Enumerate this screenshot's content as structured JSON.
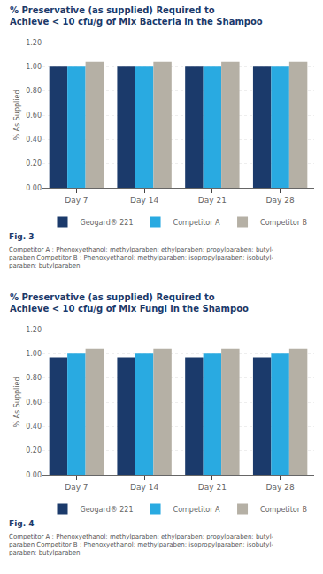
{
  "chart_data": [
    {
      "type": "bar",
      "title": "% Preservative (as supplied) Required to\nAchieve < 10 cfu/g of Mix Bacteria in the Shampoo",
      "ylabel": "% As Supplied",
      "categories": [
        "Day 7",
        "Day 14",
        "Day 21",
        "Day 28"
      ],
      "series": [
        {
          "name": "Geogard® 221",
          "color": "#1b3a6b",
          "values": [
            1.0,
            1.0,
            1.0,
            1.0
          ]
        },
        {
          "name": "Competitor A",
          "color": "#29aae1",
          "values": [
            1.0,
            1.0,
            1.0,
            1.0
          ]
        },
        {
          "name": "Competitor B",
          "color": "#b5b0a5",
          "values": [
            1.04,
            1.04,
            1.04,
            1.04
          ]
        }
      ],
      "ylim": [
        0,
        1.2
      ],
      "yticks": [
        {
          "value": 0,
          "label": "0.00"
        },
        {
          "value": 0.2,
          "label": "0.20"
        },
        {
          "value": 0.4,
          "label": "0.40"
        },
        {
          "value": 0.6,
          "label": "0.60"
        },
        {
          "value": 0.8,
          "label": "0.80"
        },
        {
          "value": 1.0,
          "label": "1.00"
        },
        {
          "value": 1.2,
          "label": "1.20"
        }
      ],
      "grid": true,
      "legend": "bottom",
      "annotations": [
        "Fig. 3",
        "Competitor A : Phenoxyethanol; methylparaben; ethylparaben; propylparaben; butyl-\nparaben Competitor B : Phenoxyethanol; methylparaben; isopropylparaben; isobutyl-\nparaben; butylparaben"
      ]
    },
    {
      "type": "bar",
      "title": "% Preservative (as supplied) Required to\nAchieve < 10 cfu/g of Mix Fungi in the Shampoo",
      "ylabel": "% As Supplied",
      "categories": [
        "Day 7",
        "Day 14",
        "Day 21",
        "Day 28"
      ],
      "series": [
        {
          "name": "Geogard® 221",
          "color": "#1b3a6b",
          "values": [
            0.97,
            0.97,
            0.97,
            0.97
          ]
        },
        {
          "name": "Competitor A",
          "color": "#29aae1",
          "values": [
            1.0,
            1.0,
            1.0,
            1.0
          ]
        },
        {
          "name": "Competitor B",
          "color": "#b5b0a5",
          "values": [
            1.04,
            1.04,
            1.04,
            1.04
          ]
        }
      ],
      "ylim": [
        0,
        1.2
      ],
      "yticks": [
        {
          "value": 0,
          "label": "0.00"
        },
        {
          "value": 0.2,
          "label": "0.20"
        },
        {
          "value": 0.4,
          "label": "0.40"
        },
        {
          "value": 0.6,
          "label": "0.60"
        },
        {
          "value": 0.8,
          "label": "0.80"
        },
        {
          "value": 1.0,
          "label": "1.00"
        },
        {
          "value": 1.2,
          "label": "1.20"
        }
      ],
      "grid": true,
      "legend": "bottom",
      "annotations": [
        "Fig. 4",
        "Competitor A : Phenoxyethanol; methylparaben; ethylparaben; propylparaben; butyl-\nparaben Competitor B : Phenoxyethanol; methylparaben; isopropylparaben; isobutyl-\nparaben; butylparaben"
      ]
    }
  ]
}
